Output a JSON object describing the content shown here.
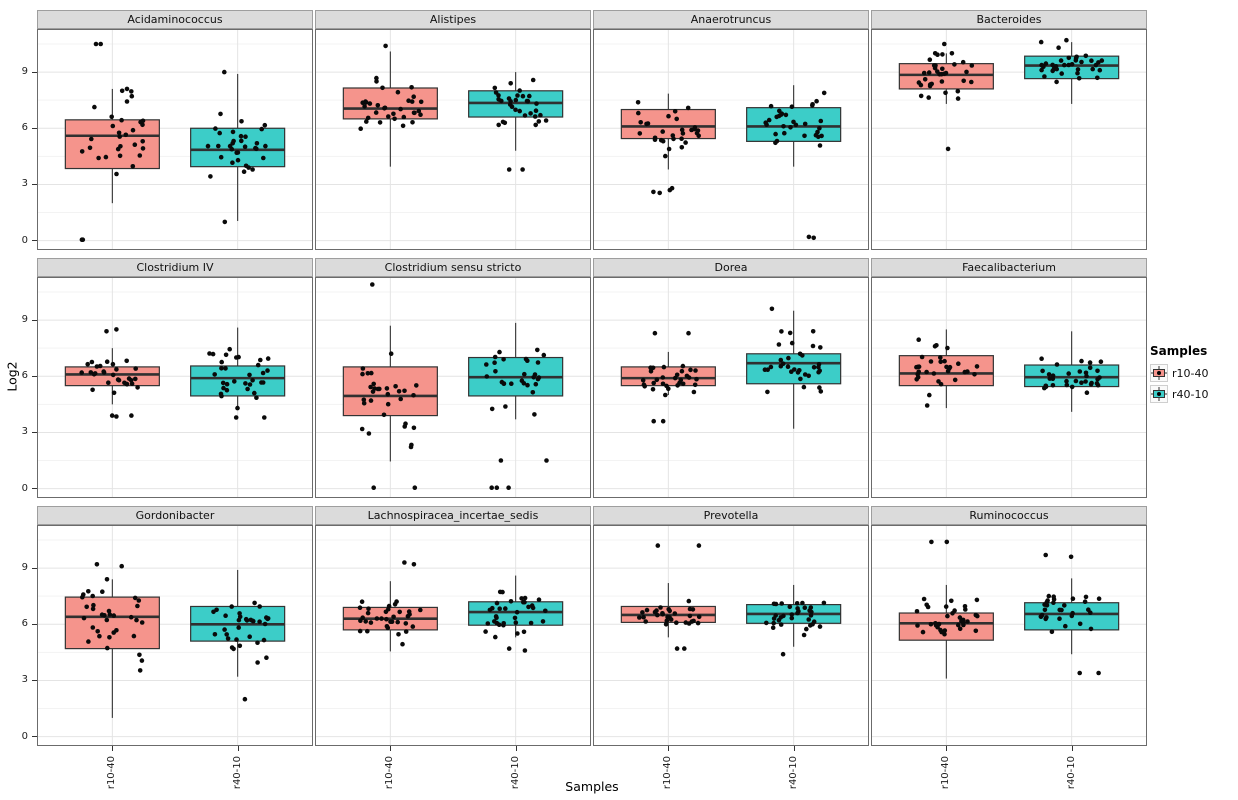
{
  "figure": {
    "y_axis": {
      "title": "Log2"
    },
    "x_axis": {
      "title": "Samples"
    },
    "legend": {
      "title": "Samples",
      "entries": [
        {
          "label": "r10-40",
          "color": "#F5948C"
        },
        {
          "label": "r40-10",
          "color": "#3CCDC8"
        }
      ]
    },
    "colors": {
      "strip_bg": "#DBDBDB",
      "strip_border": "#9E9E9E",
      "panel_bg": "#FFFFFF",
      "panel_border": "#6B6B6B",
      "grid_major": "#E4E4E4",
      "grid_minor": "#F3F3F3",
      "box_outline": "#333333",
      "median_color": "#303030",
      "point_color": "#0A0A0A",
      "fill_r10_40": "#F5948C",
      "fill_r40_10": "#3CCDC8"
    }
  },
  "chart_data": {
    "type": "bar",
    "subtype": "faceted-boxplot-with-jitter",
    "title": "",
    "xlabel": "Samples",
    "ylabel": "Log2",
    "ylim": [
      -0.5,
      11.3
    ],
    "yticks": [
      0,
      3,
      6,
      9
    ],
    "yticks_minor": [
      1.5,
      4.5,
      7.5,
      10.5
    ],
    "facet_rows": 3,
    "facet_cols": 4,
    "groups": [
      "r10-40",
      "r40-10"
    ],
    "group_colors": {
      "r10-40": "#F5948C",
      "r40-10": "#3CCDC8"
    },
    "legend_position": "right",
    "grid": true,
    "facets": [
      {
        "title": "Acidaminococcus",
        "boxes": [
          {
            "group": "r10-40",
            "low": 2.0,
            "q1": 3.85,
            "median": 5.6,
            "q3": 6.45,
            "high": 8.1,
            "extremes": [
              10.5,
              10.5,
              0.05,
              0.05
            ],
            "n_points": 34
          },
          {
            "group": "r40-10",
            "low": 1.05,
            "q1": 3.95,
            "median": 4.85,
            "q3": 6.0,
            "high": 8.9,
            "extremes": [
              9.0,
              1.0
            ],
            "n_points": 34
          }
        ]
      },
      {
        "title": "Alistipes",
        "boxes": [
          {
            "group": "r10-40",
            "low": 3.95,
            "q1": 6.5,
            "median": 7.05,
            "q3": 8.15,
            "high": 10.1,
            "extremes": [
              10.4
            ],
            "n_points": 34
          },
          {
            "group": "r40-10",
            "low": 4.8,
            "q1": 6.6,
            "median": 7.35,
            "q3": 8.0,
            "high": 9.0,
            "extremes": [
              3.8,
              3.8
            ],
            "n_points": 34
          }
        ]
      },
      {
        "title": "Anaerotruncus",
        "boxes": [
          {
            "group": "r10-40",
            "low": 3.8,
            "q1": 5.45,
            "median": 6.1,
            "q3": 7.0,
            "high": 7.85,
            "extremes": [
              2.8,
              2.7,
              2.6,
              2.55
            ],
            "n_points": 34
          },
          {
            "group": "r40-10",
            "low": 3.95,
            "q1": 5.3,
            "median": 6.1,
            "q3": 7.1,
            "high": 8.3,
            "extremes": [
              0.2,
              0.15
            ],
            "n_points": 34
          }
        ]
      },
      {
        "title": "Bacteroides",
        "boxes": [
          {
            "group": "r10-40",
            "low": 7.3,
            "q1": 8.1,
            "median": 8.85,
            "q3": 9.45,
            "high": 10.0,
            "extremes": [
              4.9,
              10.5
            ],
            "n_points": 36
          },
          {
            "group": "r40-10",
            "low": 7.3,
            "q1": 8.65,
            "median": 9.35,
            "q3": 9.85,
            "high": 10.6,
            "extremes": [
              10.7
            ],
            "n_points": 36
          }
        ]
      },
      {
        "title": "Clostridium IV",
        "boxes": [
          {
            "group": "r10-40",
            "low": 4.5,
            "q1": 5.5,
            "median": 6.1,
            "q3": 6.5,
            "high": 7.5,
            "extremes": [
              8.5,
              8.4,
              3.9,
              3.9,
              3.85
            ],
            "n_points": 34
          },
          {
            "group": "r40-10",
            "low": 4.3,
            "q1": 4.95,
            "median": 5.9,
            "q3": 6.55,
            "high": 8.6,
            "extremes": [
              3.8,
              3.8
            ],
            "n_points": 34
          }
        ]
      },
      {
        "title": "Clostridium sensu stricto",
        "boxes": [
          {
            "group": "r10-40",
            "low": 1.45,
            "q1": 3.9,
            "median": 4.95,
            "q3": 6.5,
            "high": 8.7,
            "extremes": [
              10.9,
              0.05,
              0.05
            ],
            "n_points": 34
          },
          {
            "group": "r40-10",
            "low": 3.7,
            "q1": 4.95,
            "median": 5.95,
            "q3": 7.0,
            "high": 8.85,
            "extremes": [
              1.5,
              1.5,
              0.05,
              0.05,
              0.05
            ],
            "n_points": 34
          }
        ]
      },
      {
        "title": "Dorea",
        "boxes": [
          {
            "group": "r10-40",
            "low": 5.0,
            "q1": 5.5,
            "median": 5.9,
            "q3": 6.5,
            "high": 7.3,
            "extremes": [
              8.3,
              8.3,
              3.6,
              3.6
            ],
            "n_points": 34
          },
          {
            "group": "r40-10",
            "low": 3.2,
            "q1": 5.6,
            "median": 6.7,
            "q3": 7.2,
            "high": 9.5,
            "extremes": [
              9.6
            ],
            "n_points": 34
          }
        ]
      },
      {
        "title": "Faecalibacterium",
        "boxes": [
          {
            "group": "r10-40",
            "low": 4.3,
            "q1": 5.5,
            "median": 6.15,
            "q3": 7.1,
            "high": 8.5,
            "extremes": [],
            "n_points": 32
          },
          {
            "group": "r40-10",
            "low": 4.1,
            "q1": 5.45,
            "median": 5.95,
            "q3": 6.6,
            "high": 8.4,
            "extremes": [],
            "n_points": 34
          }
        ]
      },
      {
        "title": "Gordonibacter",
        "boxes": [
          {
            "group": "r10-40",
            "low": 1.0,
            "q1": 4.7,
            "median": 6.4,
            "q3": 7.45,
            "high": 8.4,
            "extremes": [
              9.2,
              9.1
            ],
            "n_points": 36
          },
          {
            "group": "r40-10",
            "low": 3.2,
            "q1": 5.1,
            "median": 6.0,
            "q3": 6.95,
            "high": 8.9,
            "extremes": [
              2.0
            ],
            "n_points": 34
          }
        ]
      },
      {
        "title": "Lachnospiracea_incertae_sedis",
        "boxes": [
          {
            "group": "r10-40",
            "low": 4.55,
            "q1": 5.7,
            "median": 6.3,
            "q3": 6.9,
            "high": 8.3,
            "extremes": [
              9.3,
              9.2
            ],
            "n_points": 36
          },
          {
            "group": "r40-10",
            "low": 5.3,
            "q1": 5.95,
            "median": 6.65,
            "q3": 7.2,
            "high": 8.6,
            "extremes": [
              4.7,
              4.6
            ],
            "n_points": 36
          }
        ]
      },
      {
        "title": "Prevotella",
        "boxes": [
          {
            "group": "r10-40",
            "low": 5.3,
            "q1": 6.1,
            "median": 6.5,
            "q3": 6.95,
            "high": 8.2,
            "extremes": [
              10.2,
              10.2,
              4.7,
              4.7
            ],
            "n_points": 34
          },
          {
            "group": "r40-10",
            "low": 4.8,
            "q1": 6.05,
            "median": 6.55,
            "q3": 7.05,
            "high": 8.1,
            "extremes": [
              4.4
            ],
            "n_points": 34
          }
        ]
      },
      {
        "title": "Ruminococcus",
        "boxes": [
          {
            "group": "r10-40",
            "low": 3.1,
            "q1": 5.15,
            "median": 6.05,
            "q3": 6.6,
            "high": 8.1,
            "extremes": [
              10.4,
              10.4
            ],
            "n_points": 36
          },
          {
            "group": "r40-10",
            "low": 4.4,
            "q1": 5.7,
            "median": 6.55,
            "q3": 7.15,
            "high": 8.45,
            "extremes": [
              9.7,
              9.6,
              3.4,
              3.4
            ],
            "n_points": 34
          }
        ]
      }
    ]
  }
}
